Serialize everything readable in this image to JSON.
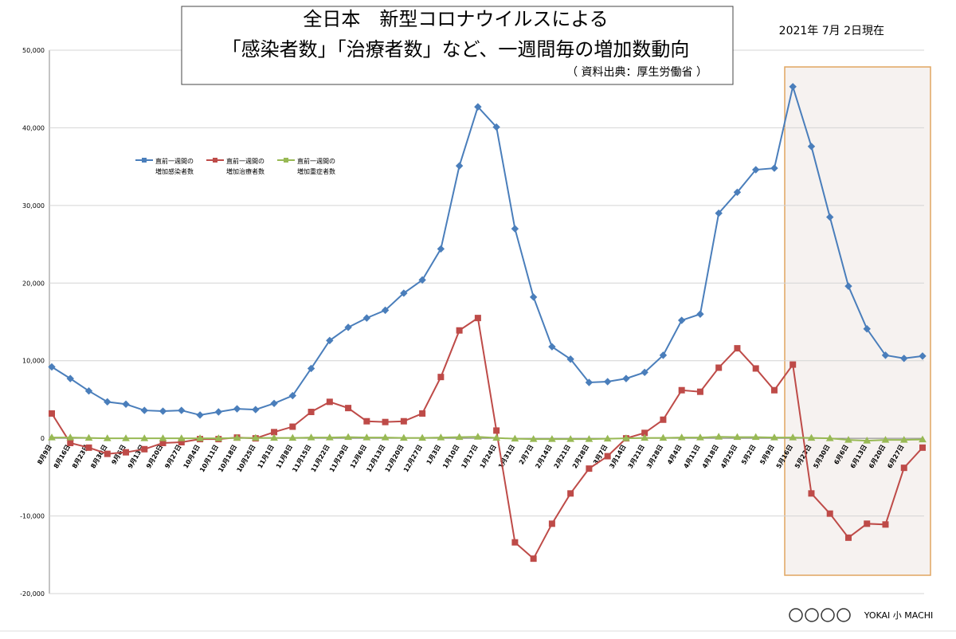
{
  "chart_data": {
    "type": "line",
    "title": "全日本　新型コロナウイルスによる",
    "subtitle": "「感染者数」「治療者数」など、一週間毎の増加数動向",
    "source": "（ 資料出典：厚生労働省 ）",
    "date": "2021年 7月 2日現在",
    "logo": "YOKAI 小 MACHI",
    "categories": [
      "8月9日",
      "8月16日",
      "8月23日",
      "8月30日",
      "9月6日",
      "9月13日",
      "9月20日",
      "9月27日",
      "10月4日",
      "10月11日",
      "10月18日",
      "10月25日",
      "11月1日",
      "11月8日",
      "11月15日",
      "11月22日",
      "11月29日",
      "12月6日",
      "12月13日",
      "12月20日",
      "12月27日",
      "1月3日",
      "1月10日",
      "1月17日",
      "1月24日",
      "1月31日",
      "2月7日",
      "2月14日",
      "2月21日",
      "2月28日",
      "3月7日",
      "3月14日",
      "3月21日",
      "3月28日",
      "4月4日",
      "4月11日",
      "4月18日",
      "4月25日",
      "5月2日",
      "5月9日",
      "5月16日",
      "5月23日",
      "5月30日",
      "6月6日",
      "6月13日",
      "6月20日",
      "6月27日",
      null
    ],
    "series": [
      {
        "name": "直前一週間の\n増加感染者数",
        "color": "#4a7ebb",
        "marker": "diamond",
        "values": [
          9200,
          7700,
          6100,
          4700,
          4400,
          3600,
          3500,
          3600,
          3000,
          3400,
          3800,
          3700,
          4500,
          5500,
          9000,
          12600,
          14300,
          15500,
          16500,
          18700,
          20400,
          24400,
          35100,
          42700,
          40100,
          27000,
          18200,
          11800,
          10200,
          7200,
          7300,
          7700,
          8500,
          10700,
          15200,
          16000,
          29000,
          31700,
          34600,
          34800,
          45300,
          37600,
          28500,
          19600,
          14100,
          10700,
          10300,
          10600
        ]
      },
      {
        "name": "直前一週間の\n増加治療者数",
        "color": "#be4b48",
        "marker": "square",
        "values": [
          3200,
          -600,
          -1200,
          -2000,
          -1800,
          -1400,
          -600,
          -500,
          -100,
          -100,
          100,
          0,
          800,
          1500,
          3400,
          4700,
          3900,
          2200,
          2100,
          2200,
          3200,
          7900,
          13900,
          15500,
          1000,
          -13400,
          -15500,
          -11000,
          -7100,
          -3900,
          -2300,
          0,
          700,
          2400,
          6200,
          6000,
          9100,
          11600,
          9000,
          6200,
          9500,
          -7100,
          -9700,
          -12800,
          -11000,
          -11100,
          -3800,
          -1200
        ]
      },
      {
        "name": "直前一週間の\n増加重症者数",
        "color": "#98b954",
        "marker": "triangle",
        "values": [
          100,
          100,
          50,
          0,
          0,
          0,
          0,
          0,
          0,
          0,
          50,
          50,
          50,
          50,
          100,
          100,
          150,
          100,
          100,
          50,
          50,
          100,
          150,
          200,
          50,
          -50,
          -100,
          -100,
          -100,
          -100,
          -50,
          0,
          50,
          50,
          100,
          100,
          200,
          150,
          150,
          100,
          100,
          50,
          0,
          -200,
          -300,
          -200,
          -200,
          -150
        ]
      }
    ],
    "ylim": [
      -20000,
      50000
    ],
    "yticks": [
      {
        "value": -20000,
        "label": "-20,000"
      },
      {
        "value": -10000,
        "label": "-10,000"
      },
      0,
      {
        "value": 10000,
        "label": "10,000"
      },
      {
        "value": 20000,
        "label": "20,000"
      },
      {
        "value": 30000,
        "label": "30,000"
      },
      {
        "value": 40000,
        "label": "40,000"
      },
      {
        "value": 50000,
        "label": "50,000"
      }
    ],
    "grid": true
  }
}
